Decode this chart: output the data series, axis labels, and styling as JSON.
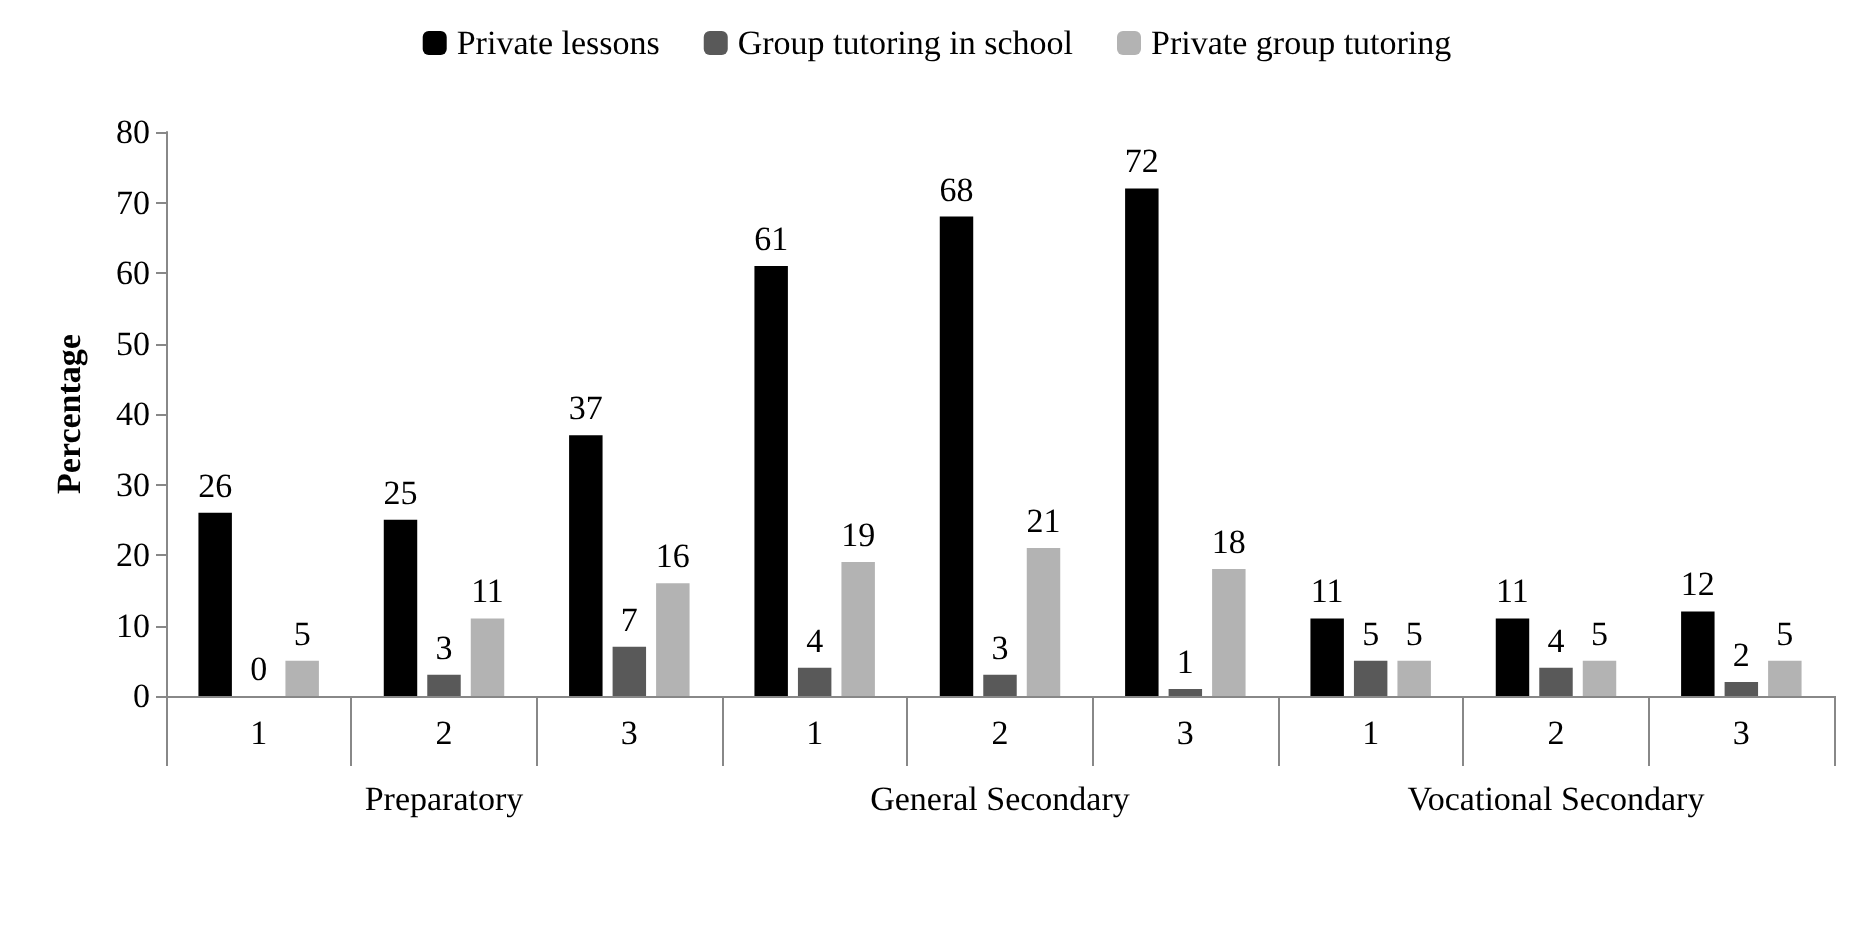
{
  "chart_data": {
    "type": "bar",
    "ylabel": "Percentage",
    "categories": [
      "1",
      "2",
      "3",
      "1",
      "2",
      "3",
      "1",
      "2",
      "3"
    ],
    "annotations": [
      "Preparatory",
      "General Secondary",
      "Vocational Secondary"
    ],
    "series": [
      {
        "name": "Private lessons",
        "color": "#000000",
        "values": [
          26,
          25,
          37,
          61,
          68,
          72,
          11,
          11,
          12
        ]
      },
      {
        "name": "Group tutoring in school",
        "color": "#595959",
        "values": [
          0,
          3,
          7,
          4,
          3,
          1,
          5,
          4,
          2
        ]
      },
      {
        "name": "Private group tutoring",
        "color": "#b3b3b3",
        "values": [
          5,
          11,
          16,
          19,
          21,
          18,
          5,
          5,
          5
        ]
      }
    ],
    "ylim": [
      0,
      80
    ],
    "yticks": [
      0,
      10,
      20,
      30,
      40,
      50,
      60,
      70,
      80
    ],
    "data_labels": true,
    "grid": false,
    "legend": "top"
  }
}
